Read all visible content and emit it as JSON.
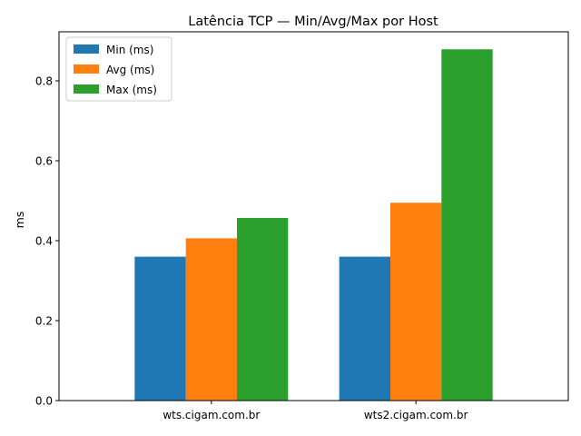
{
  "chart_data": {
    "type": "bar",
    "title": "Latência TCP — Min/Avg/Max por Host",
    "xlabel": "",
    "ylabel": "ms",
    "categories": [
      "wts.cigam.com.br",
      "wts2.cigam.com.br"
    ],
    "series": [
      {
        "name": "Min (ms)",
        "values": [
          0.36,
          0.36
        ],
        "color": "#1f77b4"
      },
      {
        "name": "Avg (ms)",
        "values": [
          0.406,
          0.495
        ],
        "color": "#ff7f0e"
      },
      {
        "name": "Max (ms)",
        "values": [
          0.457,
          0.879
        ],
        "color": "#2ca02c"
      }
    ],
    "ylim": [
      0,
      0.9228
    ],
    "yticks": [
      "0.0",
      "0.2",
      "0.4",
      "0.6",
      "0.8"
    ],
    "grid": false,
    "legend": "top-left"
  }
}
